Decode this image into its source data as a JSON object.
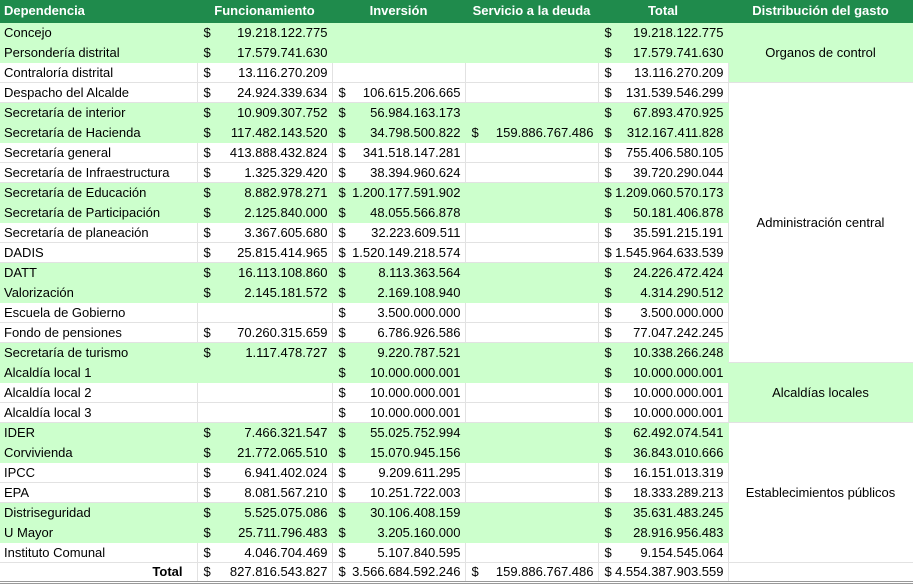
{
  "table": {
    "currency": "$",
    "header": [
      "Dependencia",
      "Funcionamiento",
      "Inversión",
      "Servicio a la deuda",
      "Total",
      "Distribución del gasto"
    ],
    "groups": [
      {
        "label": "Organos de control",
        "rows": [
          [
            "Concejo",
            "19.218.122.775",
            null,
            null,
            "19.218.122.775"
          ],
          [
            "Persondería distrital",
            "17.579.741.630",
            null,
            null,
            "17.579.741.630"
          ],
          [
            "Contraloría distrital",
            "13.116.270.209",
            null,
            null,
            "13.116.270.209"
          ]
        ]
      },
      {
        "label": "Administración central",
        "rows": [
          [
            "Despacho del Alcalde",
            "24.924.339.634",
            "106.615.206.665",
            null,
            "131.539.546.299"
          ],
          [
            "Secretaría de interior",
            "10.909.307.752",
            "56.984.163.173",
            null,
            "67.893.470.925"
          ],
          [
            "Secretaría de Hacienda",
            "117.482.143.520",
            "34.798.500.822",
            "159.886.767.486",
            "312.167.411.828"
          ],
          [
            "Secretaría general",
            "413.888.432.824",
            "341.518.147.281",
            null,
            "755.406.580.105"
          ],
          [
            "Secretaría de Infraestructura",
            "1.325.329.420",
            "38.394.960.624",
            null,
            "39.720.290.044"
          ],
          [
            "Secretaría de Educación",
            "8.882.978.271",
            "1.200.177.591.902",
            null,
            "1.209.060.570.173"
          ],
          [
            "Secretaría de Participación",
            "2.125.840.000",
            "48.055.566.878",
            null,
            "50.181.406.878"
          ],
          [
            "Secretaría de planeación",
            "3.367.605.680",
            "32.223.609.511",
            null,
            "35.591.215.191"
          ],
          [
            "DADIS",
            "25.815.414.965",
            "1.520.149.218.574",
            null,
            "1.545.964.633.539"
          ],
          [
            "DATT",
            "16.113.108.860",
            "8.113.363.564",
            null,
            "24.226.472.424"
          ],
          [
            "Valorización",
            "2.145.181.572",
            "2.169.108.940",
            null,
            "4.314.290.512"
          ],
          [
            "Escuela de Gobierno",
            null,
            "3.500.000.000",
            null,
            "3.500.000.000"
          ],
          [
            "Fondo de pensiones",
            "70.260.315.659",
            "6.786.926.586",
            null,
            "77.047.242.245"
          ],
          [
            "Secretaría de turismo",
            "1.117.478.727",
            "9.220.787.521",
            null,
            "10.338.266.248"
          ]
        ]
      },
      {
        "label": "Alcaldías locales",
        "rows": [
          [
            "Alcaldía local 1",
            null,
            "10.000.000.001",
            null,
            "10.000.000.001"
          ],
          [
            "Alcaldía local 2",
            null,
            "10.000.000.001",
            null,
            "10.000.000.001"
          ],
          [
            "Alcaldía local 3",
            null,
            "10.000.000.001",
            null,
            "10.000.000.001"
          ]
        ]
      },
      {
        "label": "Establecimientos públicos",
        "rows": [
          [
            "IDER",
            "7.466.321.547",
            "55.025.752.994",
            null,
            "62.492.074.541"
          ],
          [
            "Corvivienda",
            "21.772.065.510",
            "15.070.945.156",
            null,
            "36.843.010.666"
          ],
          [
            "IPCC",
            "6.941.402.024",
            "9.209.611.295",
            null,
            "16.151.013.319"
          ],
          [
            "EPA",
            "8.081.567.210",
            "10.251.722.003",
            null,
            "18.333.289.213"
          ],
          [
            "Distriseguridad",
            "5.525.075.086",
            "30.106.408.159",
            null,
            "35.631.483.245"
          ],
          [
            "U Mayor",
            "25.711.796.483",
            "3.205.160.000",
            null,
            "28.916.956.483"
          ],
          [
            "Instituto Comunal",
            "4.046.704.469",
            "5.107.840.595",
            null,
            "9.154.545.064"
          ]
        ]
      }
    ],
    "total": [
      "Total",
      "827.816.543.827",
      "3.566.684.592.246",
      "159.886.767.486",
      "4.554.387.903.559"
    ]
  }
}
